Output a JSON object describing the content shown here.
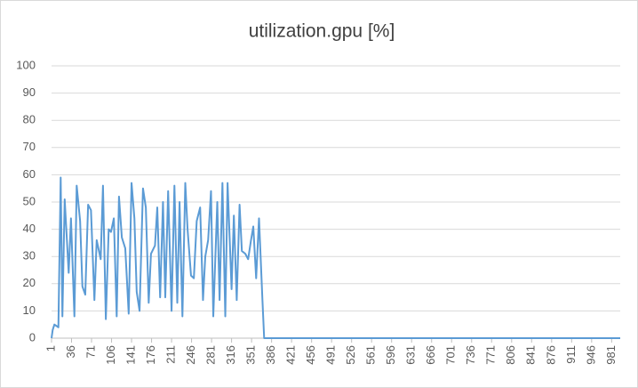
{
  "chart_data": {
    "type": "line",
    "title": "utilization.gpu [%]",
    "x": [
      1,
      3,
      6,
      13,
      17,
      20,
      24,
      31,
      35,
      41,
      45,
      51,
      55,
      60,
      65,
      70,
      76,
      80,
      87,
      91,
      96,
      101,
      105,
      110,
      115,
      119,
      124,
      130,
      136,
      141,
      146,
      150,
      155,
      161,
      166,
      171,
      175,
      182,
      186,
      191,
      196,
      200,
      205,
      211,
      216,
      221,
      225,
      230,
      235,
      239,
      245,
      250,
      255,
      261,
      266,
      270,
      275,
      280,
      284,
      291,
      295,
      300,
      305,
      309,
      316,
      320,
      325,
      330,
      334,
      340,
      345,
      350,
      354,
      359,
      364,
      370,
      373,
      996
    ],
    "series": [
      {
        "name": "utilization.gpu [%]",
        "color": "#5b9bd5",
        "values": [
          0,
          3,
          5,
          4,
          59,
          8,
          51,
          24,
          44,
          8,
          56,
          43,
          19,
          16,
          49,
          47,
          14,
          36,
          29,
          56,
          7,
          40,
          39,
          44,
          8,
          52,
          37,
          33,
          9,
          57,
          44,
          17,
          10,
          55,
          48,
          13,
          31,
          34,
          48,
          15,
          50,
          15,
          54,
          10,
          56,
          13,
          50,
          8,
          57,
          40,
          23,
          22,
          43,
          48,
          14,
          30,
          36,
          54,
          8,
          50,
          14,
          57,
          8,
          57,
          18,
          45,
          14,
          49,
          32,
          31,
          29,
          36,
          41,
          22,
          44,
          14,
          0,
          0
        ]
      }
    ],
    "xlim": [
      1,
      996
    ],
    "xticks": [
      1,
      36,
      71,
      106,
      141,
      176,
      211,
      246,
      281,
      316,
      351,
      386,
      421,
      456,
      491,
      526,
      561,
      596,
      631,
      666,
      701,
      736,
      771,
      806,
      841,
      876,
      911,
      946,
      981
    ],
    "ylim": [
      0,
      100
    ],
    "yticks": [
      0,
      10,
      20,
      30,
      40,
      50,
      60,
      70,
      80,
      90,
      100
    ],
    "grid": true
  }
}
